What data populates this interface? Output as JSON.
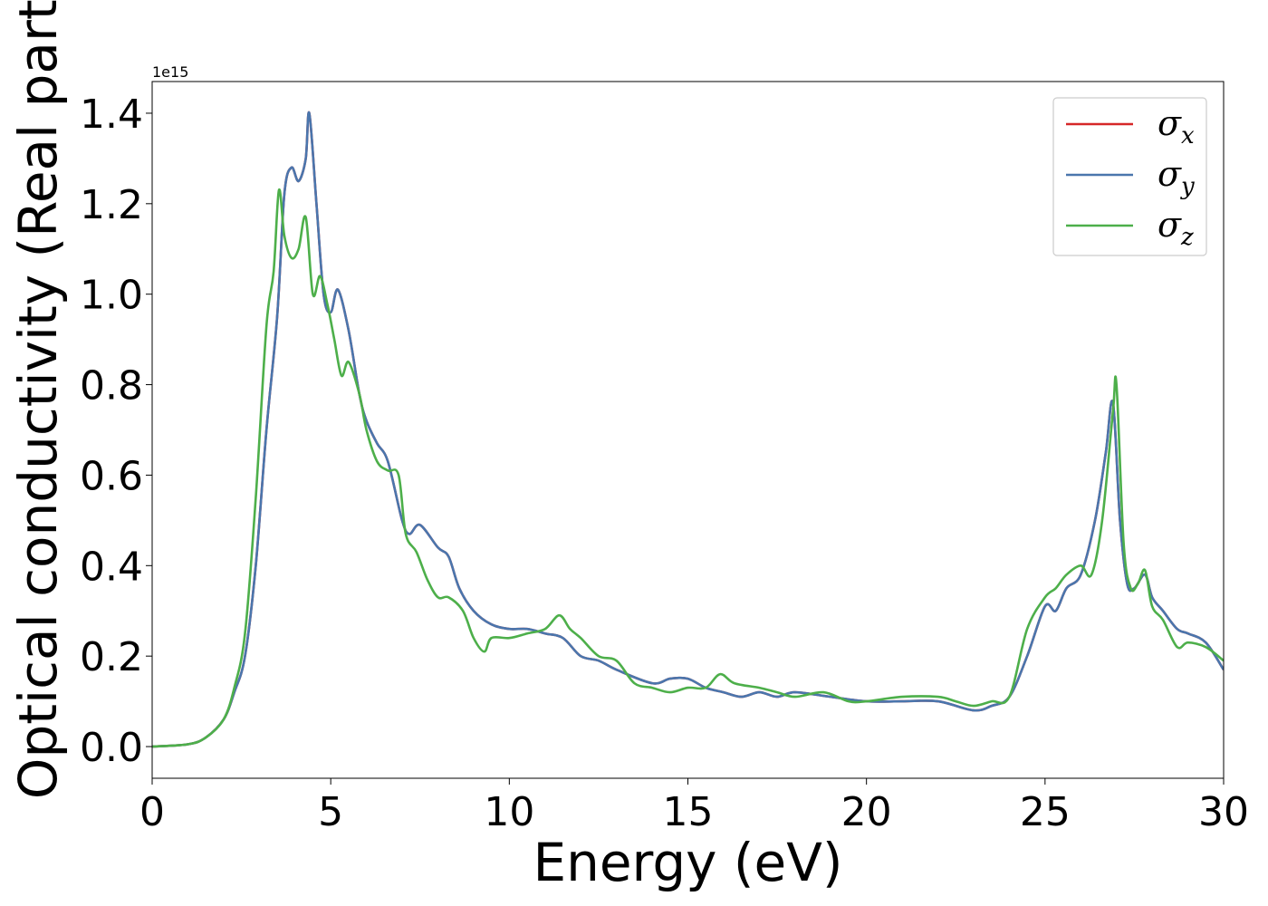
{
  "colors": {
    "sigma_x": "#d62728",
    "sigma_y": "#4a76ad",
    "sigma_z": "#4daf4a",
    "frame": "#000000",
    "legend_border": "#cccccc"
  },
  "chart_data": {
    "type": "line",
    "xlabel": "Energy (eV)",
    "ylabel": "Optical conductivity (Real part)",
    "y_offset_label": "1e15",
    "xlim": [
      0,
      30
    ],
    "ylim": [
      -0.07,
      1.47
    ],
    "x_ticks": [
      0,
      5,
      10,
      15,
      20,
      25,
      30
    ],
    "x_tick_labels": [
      "0",
      "5",
      "10",
      "15",
      "20",
      "25",
      "30"
    ],
    "y_ticks": [
      0.0,
      0.2,
      0.4,
      0.6,
      0.8,
      1.0,
      1.2,
      1.4
    ],
    "y_tick_labels": [
      "0.0",
      "0.2",
      "0.4",
      "0.6",
      "0.8",
      "1.0",
      "1.2",
      "1.4"
    ],
    "grid": false,
    "legend_position": "top-right",
    "series": [
      {
        "name": "σ_x",
        "symbol": "σ",
        "subscript": "x",
        "color": "#d62728",
        "x": [
          0,
          1,
          1.5,
          2,
          2.3,
          2.6,
          2.9,
          3.2,
          3.5,
          3.7,
          3.9,
          4.1,
          4.3,
          4.4,
          4.6,
          4.8,
          5.0,
          5.2,
          5.5,
          5.8,
          6.0,
          6.3,
          6.6,
          7.0,
          7.2,
          7.5,
          8.0,
          8.3,
          8.6,
          9.0,
          9.5,
          10.0,
          10.5,
          11.0,
          11.5,
          12.0,
          12.5,
          13.0,
          14.0,
          14.5,
          15.0,
          15.5,
          16.0,
          16.5,
          17.0,
          17.5,
          18.0,
          19.0,
          20.0,
          21.0,
          22.0,
          23.0,
          23.5,
          24.0,
          24.5,
          25.0,
          25.3,
          25.6,
          26.0,
          26.4,
          26.7,
          26.9,
          27.1,
          27.3,
          27.5,
          27.8,
          28.0,
          28.3,
          28.7,
          29.0,
          29.5,
          30.0
        ],
        "y": [
          0.0,
          0.005,
          0.02,
          0.06,
          0.12,
          0.2,
          0.4,
          0.7,
          0.95,
          1.22,
          1.28,
          1.25,
          1.3,
          1.4,
          1.2,
          1.0,
          0.96,
          1.01,
          0.92,
          0.78,
          0.72,
          0.67,
          0.63,
          0.5,
          0.47,
          0.49,
          0.44,
          0.42,
          0.35,
          0.3,
          0.27,
          0.26,
          0.26,
          0.25,
          0.24,
          0.2,
          0.19,
          0.17,
          0.14,
          0.15,
          0.15,
          0.13,
          0.12,
          0.11,
          0.12,
          0.11,
          0.12,
          0.11,
          0.1,
          0.1,
          0.1,
          0.08,
          0.09,
          0.11,
          0.2,
          0.31,
          0.3,
          0.35,
          0.38,
          0.5,
          0.65,
          0.76,
          0.5,
          0.36,
          0.35,
          0.38,
          0.33,
          0.3,
          0.26,
          0.25,
          0.23,
          0.17
        ]
      },
      {
        "name": "σ_y",
        "symbol": "σ",
        "subscript": "y",
        "color": "#4a76ad",
        "x": [
          0,
          1,
          1.5,
          2,
          2.3,
          2.6,
          2.9,
          3.2,
          3.5,
          3.7,
          3.9,
          4.1,
          4.3,
          4.4,
          4.6,
          4.8,
          5.0,
          5.2,
          5.5,
          5.8,
          6.0,
          6.3,
          6.6,
          7.0,
          7.2,
          7.5,
          8.0,
          8.3,
          8.6,
          9.0,
          9.5,
          10.0,
          10.5,
          11.0,
          11.5,
          12.0,
          12.5,
          13.0,
          14.0,
          14.5,
          15.0,
          15.5,
          16.0,
          16.5,
          17.0,
          17.5,
          18.0,
          19.0,
          20.0,
          21.0,
          22.0,
          23.0,
          23.5,
          24.0,
          24.5,
          25.0,
          25.3,
          25.6,
          26.0,
          26.4,
          26.7,
          26.9,
          27.1,
          27.3,
          27.5,
          27.8,
          28.0,
          28.3,
          28.7,
          29.0,
          29.5,
          30.0
        ],
        "y": [
          0.0,
          0.005,
          0.02,
          0.06,
          0.12,
          0.2,
          0.4,
          0.7,
          0.95,
          1.22,
          1.28,
          1.25,
          1.3,
          1.4,
          1.2,
          1.0,
          0.96,
          1.01,
          0.92,
          0.78,
          0.72,
          0.67,
          0.63,
          0.5,
          0.47,
          0.49,
          0.44,
          0.42,
          0.35,
          0.3,
          0.27,
          0.26,
          0.26,
          0.25,
          0.24,
          0.2,
          0.19,
          0.17,
          0.14,
          0.15,
          0.15,
          0.13,
          0.12,
          0.11,
          0.12,
          0.11,
          0.12,
          0.11,
          0.1,
          0.1,
          0.1,
          0.08,
          0.09,
          0.11,
          0.2,
          0.31,
          0.3,
          0.35,
          0.38,
          0.5,
          0.65,
          0.76,
          0.5,
          0.36,
          0.35,
          0.38,
          0.33,
          0.3,
          0.26,
          0.25,
          0.23,
          0.17
        ]
      },
      {
        "name": "σ_z",
        "symbol": "σ",
        "subscript": "z",
        "color": "#4daf4a",
        "x": [
          0,
          1,
          1.5,
          2,
          2.3,
          2.6,
          2.9,
          3.2,
          3.4,
          3.55,
          3.7,
          3.9,
          4.1,
          4.3,
          4.5,
          4.7,
          4.9,
          5.1,
          5.3,
          5.5,
          5.8,
          6.0,
          6.3,
          6.6,
          6.9,
          7.1,
          7.4,
          7.7,
          8.0,
          8.3,
          8.7,
          9.0,
          9.3,
          9.5,
          10.0,
          10.5,
          11.0,
          11.4,
          11.7,
          12.0,
          12.5,
          13.0,
          13.5,
          14.0,
          14.5,
          15.0,
          15.5,
          15.9,
          16.3,
          17.0,
          17.5,
          18.0,
          18.8,
          19.5,
          20.0,
          21.0,
          22.0,
          22.5,
          23.0,
          23.5,
          24.0,
          24.5,
          25.0,
          25.3,
          25.6,
          26.0,
          26.3,
          26.6,
          26.9,
          27.0,
          27.2,
          27.4,
          27.6,
          27.8,
          28.0,
          28.3,
          28.7,
          29.0,
          29.5,
          30.0
        ],
        "y": [
          0.0,
          0.005,
          0.02,
          0.06,
          0.13,
          0.25,
          0.55,
          0.93,
          1.05,
          1.23,
          1.13,
          1.08,
          1.1,
          1.17,
          1.0,
          1.04,
          0.98,
          0.9,
          0.82,
          0.85,
          0.78,
          0.7,
          0.63,
          0.61,
          0.6,
          0.47,
          0.43,
          0.37,
          0.33,
          0.33,
          0.3,
          0.24,
          0.21,
          0.24,
          0.24,
          0.25,
          0.26,
          0.29,
          0.26,
          0.24,
          0.2,
          0.19,
          0.14,
          0.13,
          0.12,
          0.13,
          0.13,
          0.16,
          0.14,
          0.13,
          0.12,
          0.11,
          0.12,
          0.1,
          0.1,
          0.11,
          0.11,
          0.1,
          0.09,
          0.1,
          0.11,
          0.26,
          0.33,
          0.35,
          0.38,
          0.4,
          0.38,
          0.5,
          0.74,
          0.8,
          0.45,
          0.35,
          0.36,
          0.39,
          0.31,
          0.28,
          0.22,
          0.23,
          0.22,
          0.19
        ]
      }
    ]
  }
}
